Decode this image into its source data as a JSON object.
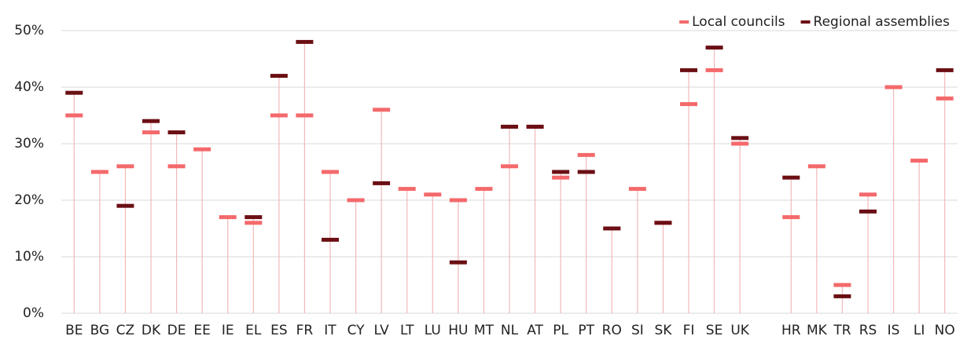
{
  "chart_data": {
    "type": "dot",
    "categories": [
      "BE",
      "BG",
      "CZ",
      "DK",
      "DE",
      "EE",
      "IE",
      "EL",
      "ES",
      "FR",
      "IT",
      "CY",
      "LV",
      "LT",
      "LU",
      "HU",
      "MT",
      "NL",
      "AT",
      "PL",
      "PT",
      "RO",
      "SI",
      "SK",
      "FI",
      "SE",
      "UK",
      null,
      "HR",
      "MK",
      "TR",
      "RS",
      "IS",
      "LI",
      "NO"
    ],
    "series": [
      {
        "name": "Local councils",
        "color": "#f4696b",
        "values": [
          35,
          25,
          26,
          32,
          26,
          29,
          17,
          16,
          35,
          35,
          25,
          20,
          36,
          22,
          21,
          20,
          22,
          26,
          33,
          24,
          28,
          15,
          22,
          16,
          37,
          43,
          30,
          null,
          17,
          26,
          5,
          21,
          40,
          27,
          38
        ]
      },
      {
        "name": "Regional assemblies",
        "color": "#6b0f14",
        "values": [
          39,
          null,
          19,
          34,
          32,
          null,
          null,
          17,
          42,
          48,
          13,
          null,
          23,
          null,
          null,
          9,
          null,
          33,
          33,
          25,
          25,
          15,
          null,
          16,
          43,
          47,
          31,
          null,
          24,
          null,
          3,
          18,
          null,
          null,
          43
        ]
      }
    ],
    "ylim": [
      0,
      50
    ],
    "yticks": [
      {
        "value": 0,
        "label": "0%"
      },
      {
        "value": 10,
        "label": "10%"
      },
      {
        "value": 20,
        "label": "20%"
      },
      {
        "value": 30,
        "label": "30%"
      },
      {
        "value": 40,
        "label": "40%"
      },
      {
        "value": 50,
        "label": "50%"
      }
    ],
    "grid": true,
    "legend": "top-right",
    "stem_color": "#f2b8b8"
  }
}
